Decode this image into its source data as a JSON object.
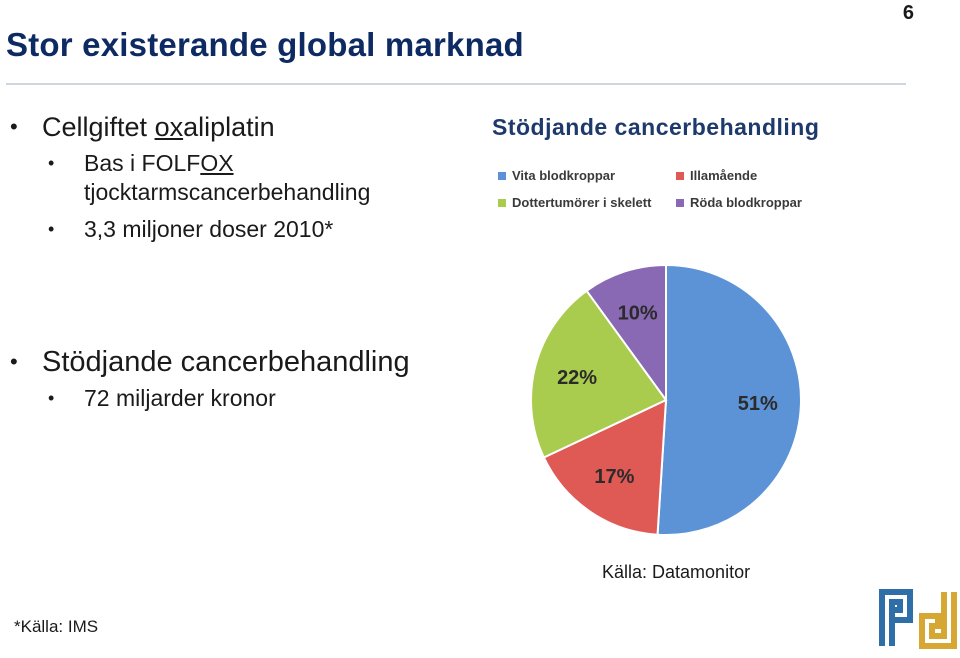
{
  "slide": {
    "page_number": "6",
    "title": "Stor existerande global marknad"
  },
  "left": {
    "section1": {
      "heading_pre": "Cellgiftet ",
      "heading_underlined": "ox",
      "heading_post": "aliplatin",
      "items": [
        {
          "pre": "Bas i FOLF",
          "underlined": "OX",
          "post": ""
        },
        {
          "pre": "tjocktarmscancerbehandling",
          "underlined": "",
          "post": ""
        },
        {
          "pre": "3,3 miljoner doser 2010*",
          "underlined": "",
          "post": ""
        }
      ]
    },
    "section2": {
      "heading": "Stödjande cancerbehandling",
      "items": [
        "72 miljarder kronor"
      ]
    }
  },
  "chart_data": {
    "type": "pie",
    "title": "Stödjande cancerbehandling",
    "legend_placement": "top",
    "slices": [
      {
        "label": "Vita blodkroppar",
        "value": 51,
        "display": "51%",
        "color": "#5b93d6"
      },
      {
        "label": "Illamående",
        "value": 17,
        "display": "17%",
        "color": "#e05a55"
      },
      {
        "label": "Dottertumörer i skelett",
        "value": 22,
        "display": "22%",
        "color": "#a9cc4e"
      },
      {
        "label": "Röda blodkroppar",
        "value": 10,
        "display": "10%",
        "color": "#8968b4"
      }
    ],
    "legend_order": [
      0,
      1,
      2,
      3
    ]
  },
  "footer": {
    "source": "Källa: Datamonitor",
    "footnote": "*Källa: IMS"
  },
  "colors": {
    "title": "#0e2a63",
    "logo_blue": "#2f6fa8",
    "logo_gold": "#d7a733"
  }
}
